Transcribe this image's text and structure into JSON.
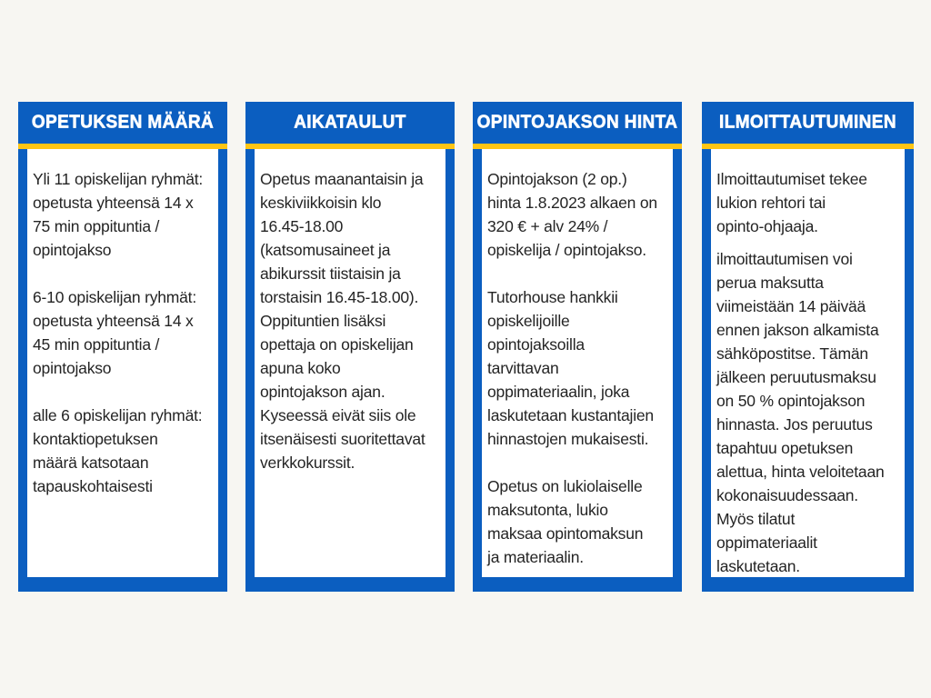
{
  "theme": {
    "background": "#f7f6f2",
    "card_blue": "#0b5ec0",
    "stripe_yellow": "#fec515",
    "body_white": "#ffffff",
    "text_color": "#242424",
    "title_color": "#ffffff"
  },
  "cards": [
    {
      "title": "OPETUKSEN MÄÄRÄ",
      "paragraphs": [
        [
          "Yli 11 opiskelijan ryhmät:",
          "opetusta yhteensä 14 x",
          "75 min oppituntia /",
          "opintojakso"
        ],
        [
          "6-10 opiskelijan ryhmät:",
          "opetusta yhteensä 14 x",
          "45 min oppituntia /",
          "opintojakso"
        ],
        [
          "alle 6 opiskelijan ryhmät:",
          "kontaktiopetuksen",
          "määrä katsotaan",
          "tapauskohtaisesti"
        ]
      ]
    },
    {
      "title": "AIKATAULUT",
      "paragraphs": [
        [
          "Opetus maanantaisin ja",
          "keskiviikkoisin klo",
          "16.45-18.00",
          "(katsomusaineet ja",
          "abikurssit tiistaisin ja",
          "torstaisin 16.45-18.00).",
          "Oppituntien lisäksi",
          "opettaja on opiskelijan",
          "apuna koko",
          "opintojakson ajan.",
          "Kyseessä eivät siis ole",
          "itsenäisesti suoritettavat",
          "verkkokurssit."
        ]
      ]
    },
    {
      "title": "OPINTOJAKSON HINTA",
      "paragraphs": [
        [
          "Opintojakson (2 op.)",
          "hinta 1.8.2023 alkaen on",
          "320 € + alv 24% /",
          "opiskelija / opintojakso."
        ],
        [
          "Tutorhouse hankkii",
          "opiskelijoille",
          "opintojaksoilla",
          "tarvittavan",
          "oppimateriaalin, joka",
          "laskutetaan kustantajien",
          "hinnastojen mukaisesti."
        ],
        [
          "Opetus on lukiolaiselle",
          "maksutonta, lukio",
          "maksaa opintomaksun",
          "ja materiaalin."
        ]
      ]
    },
    {
      "title": "ILMOITTAUTUMINEN",
      "paragraphs": [
        [
          "Ilmoittautumiset tekee",
          "lukion rehtori tai",
          "opinto-ohjaaja."
        ],
        [
          "ilmoittautumisen voi",
          "perua maksutta",
          "viimeistään 14 päivää",
          "ennen jakson alkamista",
          "sähköpostitse. Tämän",
          "jälkeen peruutusmaksu",
          "on 50 % opintojakson",
          "hinnasta. Jos peruutus",
          "tapahtuu opetuksen",
          "alettua, hinta veloitetaan",
          "kokonaisuudessaan.",
          "Myös tilatut",
          "oppimateriaalit",
          "laskutetaan."
        ]
      ]
    }
  ]
}
